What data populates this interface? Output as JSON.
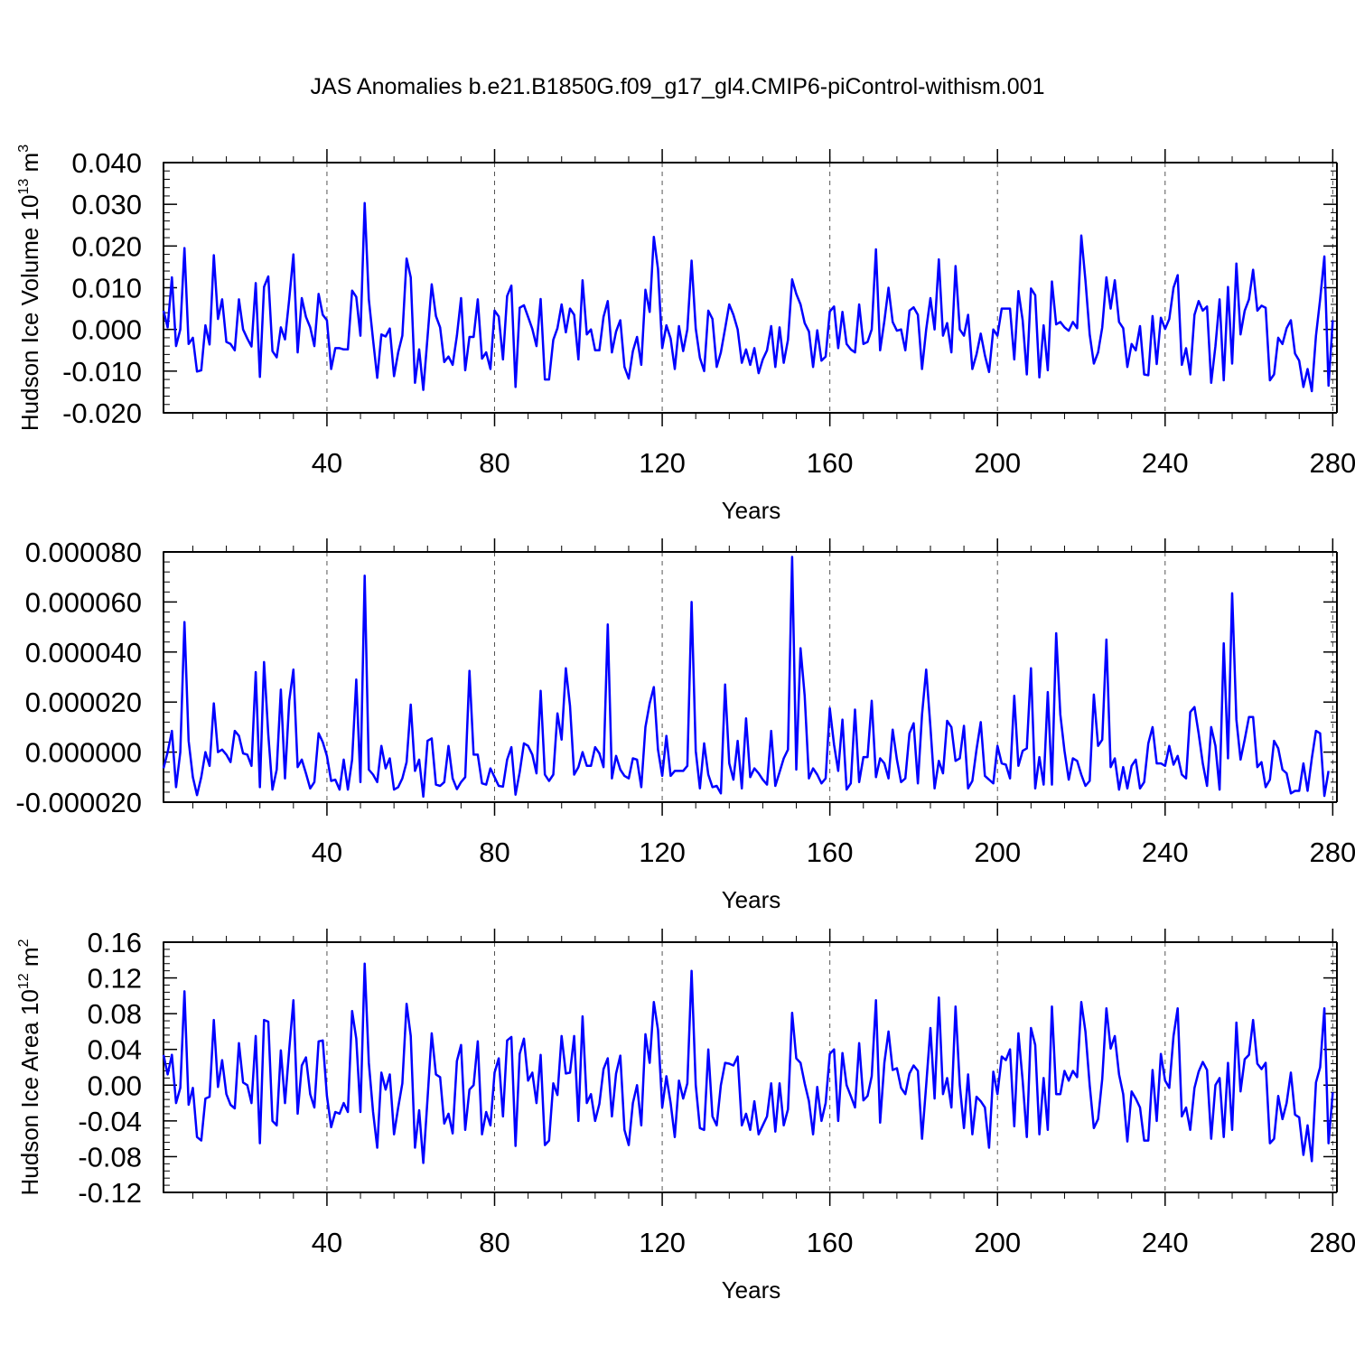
{
  "title": "JAS Anomalies b.e21.B1850G.f09_g17_gl4.CMIP6-piControl-withism.001",
  "colors": {
    "series": "#0000ff",
    "axes": "#000000",
    "grid": "#555555"
  },
  "chart_data": [
    {
      "type": "line",
      "ylabel": "Hudson Ice Volume 10",
      "ylabel_sup": "13",
      "ylabel_unit": " m",
      "ylabel_unit_sup": "3",
      "xlabel": "Years",
      "xlim": [
        1,
        281
      ],
      "ylim": [
        -0.02,
        0.04
      ],
      "xticks": [
        40,
        80,
        120,
        160,
        200,
        240,
        280
      ],
      "xtick_labels": [
        "40",
        "80",
        "120",
        "160",
        "200",
        "240",
        "280"
      ],
      "yticks": [
        -0.02,
        -0.01,
        0.0,
        0.01,
        0.02,
        0.03,
        0.04
      ],
      "ytick_labels": [
        "-0.020",
        "-0.010",
        "0.000",
        "0.010",
        "0.020",
        "0.030",
        "0.040"
      ],
      "ygrid_minor": 0.002,
      "grid": "dashed vertical at x ticks",
      "series": [
        {
          "values": [
            0.0045,
            0.0005,
            0.0125,
            -0.004,
            0.0,
            0.0195,
            -0.0035,
            -0.002,
            -0.0101,
            -0.0098,
            0.001,
            -0.0036,
            0.0178,
            0.0025,
            0.0072,
            -0.003,
            -0.0035,
            -0.005,
            0.0072,
            0.0,
            -0.0022,
            -0.0041,
            0.0111,
            -0.0114,
            0.0102,
            0.0127,
            -0.0052,
            -0.0067,
            0.0005,
            -0.0024,
            0.0073,
            0.018,
            -0.0055,
            0.0075,
            0.003,
            0.0005,
            -0.004,
            0.0085,
            0.0035,
            0.0022,
            -0.0095,
            -0.0045,
            -0.0045,
            -0.0048,
            -0.0048,
            0.0093,
            0.0078,
            -0.0015,
            0.0303,
            0.0072,
            -0.0025,
            -0.0116,
            -0.0012,
            -0.0017,
            0.0002,
            -0.0112,
            -0.0055,
            -0.0015,
            0.017,
            0.0125,
            -0.0128,
            -0.0048,
            -0.0145,
            -0.0018,
            0.0108,
            0.0032,
            0.0005,
            -0.0078,
            -0.0065,
            -0.0085,
            -0.0015,
            0.0075,
            -0.0098,
            -0.0018,
            -0.0018,
            0.0072,
            -0.007,
            -0.0055,
            -0.0095,
            0.0045,
            0.0031,
            -0.0072,
            0.008,
            0.0105,
            -0.0138,
            0.0052,
            0.0058,
            0.003,
            0.0001,
            -0.004,
            0.0073,
            -0.012,
            -0.012,
            -0.0025,
            0.0003,
            0.006,
            -0.0007,
            0.005,
            0.0035,
            -0.0072,
            0.0118,
            -0.0012,
            0.0,
            -0.005,
            -0.005,
            0.003,
            0.0068,
            -0.0055,
            -0.0005,
            0.0022,
            -0.009,
            -0.0118,
            -0.0052,
            -0.0018,
            -0.0085,
            0.0095,
            0.0042,
            0.0222,
            0.0145,
            -0.0045,
            0.001,
            -0.0022,
            -0.0095,
            0.0008,
            -0.0052,
            0.0,
            0.0165,
            0.0002,
            -0.0068,
            -0.01,
            0.0045,
            0.0025,
            -0.009,
            -0.0055,
            0.0002,
            0.006,
            0.0035,
            0.0,
            -0.008,
            -0.0048,
            -0.0085,
            -0.0045,
            -0.0105,
            -0.0072,
            -0.005,
            0.0008,
            -0.009,
            0.0005,
            -0.008,
            -0.0025,
            0.012,
            0.0085,
            0.006,
            0.0015,
            -0.0005,
            -0.009,
            -0.0002,
            -0.0075,
            -0.0065,
            0.0043,
            0.0055,
            -0.0045,
            0.0042,
            -0.0035,
            -0.0048,
            -0.0055,
            0.006,
            -0.0035,
            -0.003,
            0.0,
            0.0192,
            -0.005,
            0.002,
            0.01,
            0.0018,
            -0.0003,
            0.0,
            -0.005,
            0.0045,
            0.0053,
            0.0035,
            -0.0095,
            0.0,
            0.0075,
            0.0,
            0.0168,
            -0.0015,
            0.0015,
            -0.0055,
            0.0152,
            0.0,
            -0.0015,
            0.0035,
            -0.0095,
            -0.006,
            -0.001,
            -0.0062,
            -0.0102,
            0.0,
            -0.0015,
            0.005,
            0.005,
            0.005,
            -0.0072,
            0.0092,
            0.0022,
            -0.0108,
            0.0098,
            0.0082,
            -0.0115,
            0.001,
            -0.0098,
            0.0115,
            0.0012,
            0.0018,
            0.0005,
            -0.0003,
            0.0018,
            0.0003,
            0.0225,
            0.0118,
            -0.0012,
            -0.0082,
            -0.0055,
            0.0005,
            0.0125,
            0.005,
            0.0118,
            0.0018,
            0.0003,
            -0.009,
            -0.0035,
            -0.005,
            0.0008,
            -0.0108,
            -0.011,
            0.0032,
            -0.0083,
            0.0028,
            0.0001,
            0.0025,
            0.01,
            0.013,
            -0.0085,
            -0.0045,
            -0.0108,
            0.0035,
            0.0068,
            0.0045,
            0.0055,
            -0.0128,
            -0.004,
            0.0072,
            -0.0122,
            0.0102,
            -0.0082,
            0.0158,
            -0.0012,
            0.0045,
            0.0072,
            0.0143,
            0.0045,
            0.0057,
            0.0052,
            -0.0122,
            -0.0108,
            -0.002,
            -0.0035,
            0.0003,
            0.0022,
            -0.0058,
            -0.0075,
            -0.0138,
            -0.0095,
            -0.0148,
            -0.0015,
            0.0072,
            0.0175,
            -0.0135,
            0.0022
          ]
        }
      ]
    },
    {
      "type": "line",
      "ylabel": "",
      "xlabel": "Years",
      "xlim": [
        1,
        281
      ],
      "ylim": [
        -2e-05,
        8e-05
      ],
      "xticks": [
        40,
        80,
        120,
        160,
        200,
        240,
        280
      ],
      "xtick_labels": [
        "40",
        "80",
        "120",
        "160",
        "200",
        "240",
        "280"
      ],
      "yticks": [
        -2e-05,
        0.0,
        2e-05,
        4e-05,
        6e-05,
        8e-05
      ],
      "ytick_labels": [
        "-0.000020",
        "0.000000",
        "0.000020",
        "0.000040",
        "0.000060",
        "0.000080"
      ],
      "ygrid_minor": 4e-06,
      "grid": "dashed vertical at x ticks",
      "series": [
        {
          "values": [
            -6.5e-06,
            0.0,
            8.5e-06,
            -1.4e-05,
            0.0,
            5.2e-05,
            4.5e-06,
            -1e-05,
            -1.72e-05,
            -1e-05,
            0.0,
            -5.5e-06,
            1.95e-05,
            0.0,
            1e-06,
            -1e-06,
            -4e-06,
            8.5e-06,
            6.5e-06,
            -5e-07,
            -1e-06,
            -5.5e-06,
            3.2e-05,
            -1.4e-05,
            3.6e-05,
            7e-06,
            -1.5e-05,
            -7e-06,
            2.5e-05,
            -1.05e-05,
            2.05e-05,
            3.3e-05,
            -6e-06,
            -3e-06,
            -8.5e-06,
            -1.45e-05,
            -1.2e-05,
            7.5e-06,
            4e-06,
            -1.5e-06,
            -1.15e-05,
            -1.1e-05,
            -1.5e-05,
            -3e-06,
            -1.5e-05,
            -3e-06,
            2.9e-05,
            -1.2e-05,
            7.05e-05,
            -7e-06,
            -9e-06,
            -1.2e-05,
            2.5e-06,
            -6.5e-06,
            -2.5e-06,
            -1.5e-05,
            -1.4e-05,
            -1.05e-05,
            -4e-06,
            1.9e-05,
            -7.5e-06,
            -3e-06,
            -1.78e-05,
            4.5e-06,
            5.5e-06,
            -1.3e-05,
            -1.35e-05,
            -1.2e-05,
            2.5e-06,
            -1.05e-05,
            -1.48e-05,
            -1.2e-05,
            -1e-05,
            3.25e-05,
            -1e-06,
            -1e-06,
            -1.25e-05,
            -1.3e-05,
            -6.5e-06,
            -1e-05,
            -1.35e-05,
            -1.38e-05,
            -3e-06,
            2e-06,
            -1.7e-05,
            -8e-06,
            3.5e-06,
            2.5e-06,
            -1e-06,
            -8.5e-06,
            2.45e-05,
            -9e-06,
            -1.15e-05,
            -9e-06,
            1.55e-05,
            5e-06,
            3.35e-05,
            1.85e-05,
            -9e-06,
            -6e-06,
            0.0,
            -5.5e-06,
            -5.5e-06,
            2e-06,
            -5e-07,
            -6e-06,
            5.1e-05,
            -1.05e-05,
            -1.5e-06,
            -7e-06,
            -9.5e-06,
            -1.05e-05,
            -2.5e-06,
            -3e-06,
            -1.4e-05,
            1e-05,
            1.95e-05,
            2.6e-05,
            1e-06,
            -9.5e-06,
            6.5e-06,
            -9.5e-06,
            -7.5e-06,
            -7.5e-06,
            -7.5e-06,
            -5.5e-06,
            6e-05,
            5e-07,
            -1.45e-05,
            3.5e-06,
            -9e-06,
            -1.4e-05,
            -1.35e-05,
            -1.65e-05,
            2.7e-05,
            -4.5e-06,
            -1.1e-05,
            4.5e-06,
            -1.45e-05,
            1.35e-05,
            -1e-05,
            -6.5e-06,
            -8.5e-06,
            -1.1e-05,
            -1.3e-05,
            8.5e-06,
            -1.35e-05,
            -8e-06,
            -2.5e-06,
            1e-06,
            7.8e-05,
            -7e-06,
            4.15e-05,
            2.25e-05,
            -1.05e-05,
            -6.5e-06,
            -9e-06,
            -1.25e-05,
            -1.05e-05,
            1.75e-05,
            3e-06,
            -7.5e-06,
            1.3e-05,
            -1.5e-05,
            -1.25e-05,
            1.7e-05,
            -1.2e-05,
            -2e-06,
            -2e-06,
            2.05e-05,
            -1e-05,
            -2.5e-06,
            -4.5e-06,
            -1.05e-05,
            9e-06,
            -3e-06,
            -1.2e-05,
            -1.05e-05,
            7.5e-06,
            1.15e-05,
            -1.25e-05,
            1.5e-05,
            3.3e-05,
            1e-05,
            -1.45e-05,
            -3.5e-06,
            -8.5e-06,
            1.25e-05,
            1e-05,
            -3.5e-06,
            -2.5e-06,
            1.05e-05,
            -1.45e-05,
            -1.15e-05,
            1e-06,
            1.2e-05,
            -9.5e-06,
            -1.1e-05,
            -1.25e-05,
            2.5e-06,
            -4.5e-06,
            -5e-06,
            -1.05e-05,
            2.25e-05,
            -5.5e-06,
            5e-07,
            1.5e-06,
            3.35e-05,
            -1.45e-05,
            -2e-06,
            -1.3e-05,
            2.4e-05,
            -1.3e-05,
            4.75e-05,
            1.5e-05,
            5e-07,
            -1.1e-05,
            -2.5e-06,
            -3.5e-06,
            -9e-06,
            -1.35e-05,
            -1.15e-05,
            2.3e-05,
            2.5e-06,
            5e-06,
            4.5e-05,
            -6e-06,
            -2.5e-06,
            -1.5e-05,
            -6e-06,
            -1.45e-05,
            -5.5e-06,
            -3e-06,
            -1.45e-05,
            -1.2e-05,
            3.5e-06,
            1e-05,
            -4.5e-06,
            -4.5e-06,
            -5.5e-06,
            2.5e-06,
            -5e-06,
            -1.5e-06,
            -9e-06,
            -1.05e-05,
            1.6e-05,
            1.8e-05,
            7.5e-06,
            -4.5e-06,
            -1.35e-05,
            1e-05,
            2.5e-06,
            -1.5e-05,
            4.35e-05,
            -2.5e-06,
            6.35e-05,
            1.3e-05,
            -3e-06,
            5e-06,
            1.4e-05,
            1.4e-05,
            -6e-06,
            -4e-06,
            -1.4e-05,
            -1.1e-05,
            4.5e-06,
            1.5e-06,
            -7e-06,
            -8.5e-06,
            -1.65e-05,
            -1.55e-05,
            -1.55e-05,
            -4.5e-06,
            -1.55e-05,
            -2.5e-06,
            8.5e-06,
            7.5e-06,
            -1.75e-05,
            -7.5e-06
          ]
        }
      ]
    },
    {
      "type": "line",
      "ylabel": "Hudson Ice Area 10",
      "ylabel_sup": "12",
      "ylabel_unit": " m",
      "ylabel_unit_sup": "2",
      "xlabel": "Years",
      "xlim": [
        1,
        281
      ],
      "ylim": [
        -0.12,
        0.16
      ],
      "xticks": [
        40,
        80,
        120,
        160,
        200,
        240,
        280
      ],
      "xtick_labels": [
        "40",
        "80",
        "120",
        "160",
        "200",
        "240",
        "280"
      ],
      "yticks": [
        -0.12,
        -0.08,
        -0.04,
        0.0,
        0.04,
        0.08,
        0.12,
        0.16
      ],
      "ytick_labels": [
        "-0.12",
        "-0.08",
        "-0.04",
        "0.00",
        "0.04",
        "0.08",
        "0.12",
        "0.16"
      ],
      "ygrid_minor": 0.008,
      "grid": "dashed vertical at x ticks",
      "series": [
        {
          "values": [
            0.034,
            0.012,
            0.034,
            -0.02,
            -0.003,
            0.105,
            -0.022,
            -0.003,
            -0.058,
            -0.062,
            -0.015,
            -0.013,
            0.073,
            -0.002,
            0.028,
            -0.01,
            -0.022,
            -0.026,
            0.047,
            0.003,
            0.0,
            -0.02,
            0.055,
            -0.065,
            0.073,
            0.071,
            -0.04,
            -0.045,
            0.039,
            -0.02,
            0.04,
            0.095,
            -0.032,
            0.022,
            0.031,
            -0.01,
            -0.025,
            0.049,
            0.05,
            -0.012,
            -0.047,
            -0.03,
            -0.032,
            -0.02,
            -0.03,
            0.083,
            0.052,
            -0.03,
            0.136,
            0.025,
            -0.03,
            -0.07,
            0.014,
            -0.005,
            0.012,
            -0.055,
            -0.025,
            0.002,
            0.091,
            0.055,
            -0.07,
            -0.028,
            -0.087,
            -0.015,
            0.058,
            0.012,
            0.009,
            -0.043,
            -0.032,
            -0.054,
            0.027,
            0.045,
            -0.05,
            -0.005,
            0.0,
            0.049,
            -0.055,
            -0.03,
            -0.045,
            0.014,
            0.03,
            -0.035,
            0.05,
            0.054,
            -0.068,
            0.035,
            0.052,
            0.005,
            0.014,
            -0.02,
            0.034,
            -0.067,
            -0.062,
            0.002,
            -0.011,
            0.055,
            0.013,
            0.014,
            0.055,
            -0.04,
            0.077,
            -0.02,
            -0.01,
            -0.04,
            -0.021,
            0.018,
            0.03,
            -0.035,
            0.013,
            0.033,
            -0.05,
            -0.067,
            -0.02,
            0.0,
            -0.045,
            0.057,
            0.025,
            0.093,
            0.062,
            -0.025,
            0.01,
            -0.02,
            -0.058,
            0.005,
            -0.015,
            0.002,
            0.128,
            0.0,
            -0.048,
            -0.05,
            0.04,
            -0.035,
            -0.045,
            0.0,
            0.025,
            0.024,
            0.022,
            0.032,
            -0.045,
            -0.032,
            -0.05,
            -0.018,
            -0.055,
            -0.045,
            -0.035,
            0.002,
            -0.052,
            0.002,
            -0.045,
            -0.027,
            0.081,
            0.03,
            0.025,
            0.002,
            -0.018,
            -0.055,
            -0.002,
            -0.04,
            -0.02,
            0.035,
            0.04,
            -0.04,
            0.036,
            0.0,
            -0.012,
            -0.025,
            0.047,
            -0.017,
            -0.012,
            0.01,
            0.095,
            -0.042,
            0.025,
            0.06,
            0.017,
            0.019,
            -0.003,
            -0.01,
            0.013,
            0.022,
            0.016,
            -0.06,
            0.0,
            0.064,
            -0.015,
            0.098,
            -0.01,
            0.008,
            -0.025,
            0.088,
            0.0,
            -0.048,
            0.012,
            -0.055,
            -0.013,
            -0.018,
            -0.025,
            -0.07,
            0.015,
            -0.01,
            0.032,
            0.028,
            0.04,
            -0.046,
            0.058,
            0.005,
            -0.058,
            0.064,
            0.045,
            -0.055,
            0.008,
            -0.05,
            0.088,
            -0.01,
            -0.01,
            0.016,
            0.005,
            0.016,
            0.009,
            0.093,
            0.06,
            0.0,
            -0.048,
            -0.038,
            0.007,
            0.086,
            0.041,
            0.055,
            0.012,
            -0.01,
            -0.063,
            -0.007,
            -0.015,
            -0.025,
            -0.062,
            -0.062,
            0.017,
            -0.04,
            0.035,
            0.005,
            -0.003,
            0.055,
            0.086,
            -0.035,
            -0.025,
            -0.05,
            -0.003,
            0.015,
            0.026,
            0.017,
            -0.06,
            0.0,
            0.008,
            -0.058,
            0.025,
            -0.05,
            0.07,
            -0.007,
            0.029,
            0.034,
            0.073,
            0.024,
            0.018,
            0.025,
            -0.065,
            -0.06,
            -0.012,
            -0.038,
            -0.02,
            0.014,
            -0.033,
            -0.036,
            -0.078,
            -0.045,
            -0.085,
            0.003,
            0.02,
            0.086,
            -0.065,
            -0.008
          ]
        }
      ]
    }
  ]
}
